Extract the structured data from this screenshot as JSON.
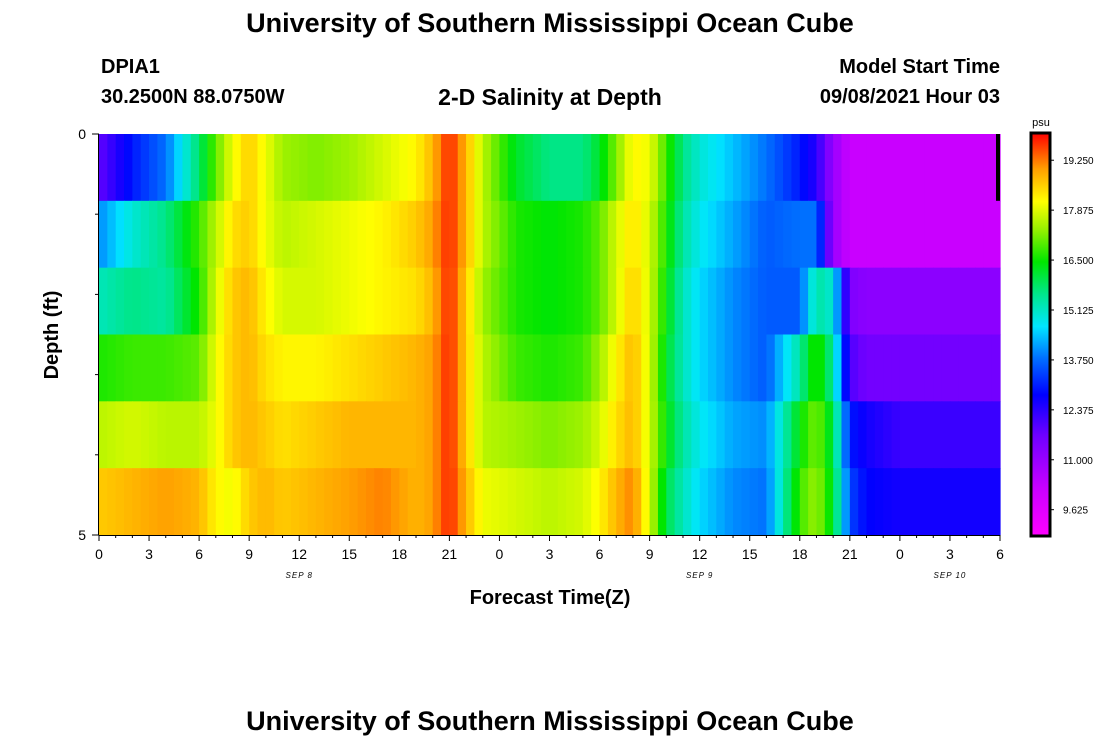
{
  "header": {
    "title_top": "University of Southern Mississippi Ocean Cube",
    "title_bottom": "University of Southern Mississippi Ocean Cube",
    "station_id": "DPIA1",
    "coordinates": "30.2500N  88.0750W",
    "chart_title": "2-D Salinity at Depth",
    "model_start_label": "Model Start Time",
    "model_start_value": "09/08/2021 Hour 03"
  },
  "chart_data": {
    "type": "heatmap",
    "title": "2-D Salinity at Depth",
    "xlabel": "Forecast Time(Z)",
    "ylabel": "Depth (ft)",
    "colorbar_label": "psu",
    "colorbar_ticks": [
      19.25,
      17.875,
      16.5,
      15.125,
      13.75,
      12.375,
      11.0,
      9.625
    ],
    "colorbar_tick_labels": [
      "19.250",
      "17.875",
      "16.500",
      "15.125",
      "13.750",
      "12.375",
      "11.000",
      "9.625"
    ],
    "colorbar_range": [
      8.9,
      20.0
    ],
    "x_hours": [
      0,
      54
    ],
    "x_ticks": [
      0,
      3,
      6,
      9,
      12,
      15,
      18,
      21,
      24,
      27,
      30,
      33,
      36,
      39,
      42,
      45,
      48,
      51,
      54
    ],
    "x_tick_labels": [
      "0",
      "3",
      "6",
      "9",
      "12",
      "15",
      "18",
      "21",
      "0",
      "3",
      "6",
      "9",
      "12",
      "15",
      "18",
      "21",
      "0",
      "3",
      "6"
    ],
    "date_labels": [
      {
        "hour": 12,
        "label": "SEP 8"
      },
      {
        "hour": 36,
        "label": "SEP 9"
      },
      {
        "hour": 51,
        "label": "SEP 10"
      }
    ],
    "ylim": [
      0,
      5
    ],
    "y_tick_labels": [
      "0",
      "5"
    ],
    "y_minor_ticks": [
      1,
      2,
      3,
      4
    ],
    "depth_layers": [
      0,
      1,
      2,
      3,
      4
    ],
    "keyframes_hours": [
      0,
      2,
      4,
      6,
      7,
      8,
      9,
      10,
      11,
      13,
      15,
      17,
      19,
      20,
      21,
      22,
      23,
      25,
      27,
      29,
      30,
      31,
      32,
      33,
      34,
      35,
      36,
      38,
      40,
      42,
      43,
      44,
      45,
      46,
      48,
      50,
      52,
      54
    ],
    "salinity": [
      [
        11.8,
        13.0,
        13.8,
        15.8,
        17.0,
        18.0,
        18.6,
        18.0,
        17.4,
        17.2,
        17.4,
        17.8,
        18.2,
        18.8,
        19.8,
        18.8,
        17.6,
        16.2,
        15.6,
        15.6,
        16.2,
        17.2,
        18.2,
        18.0,
        16.8,
        15.6,
        15.0,
        14.4,
        13.8,
        13.0,
        12.4,
        11.0,
        10.2,
        10.2,
        10.2,
        10.2,
        10.2,
        10.2
      ],
      [
        14.0,
        15.0,
        15.6,
        16.8,
        17.6,
        18.4,
        18.6,
        18.0,
        17.6,
        17.8,
        18.0,
        18.2,
        18.6,
        19.0,
        19.8,
        18.8,
        17.6,
        16.6,
        16.4,
        16.6,
        17.0,
        17.8,
        18.4,
        17.8,
        16.6,
        15.4,
        14.8,
        14.2,
        13.6,
        13.8,
        13.8,
        11.0,
        10.2,
        10.2,
        10.2,
        10.2,
        10.2,
        10.2
      ],
      [
        15.2,
        15.6,
        15.4,
        16.6,
        17.8,
        18.6,
        18.8,
        18.2,
        17.8,
        17.8,
        18.0,
        18.2,
        18.4,
        18.8,
        19.8,
        18.6,
        17.4,
        16.6,
        16.4,
        16.6,
        17.0,
        17.8,
        18.6,
        17.8,
        16.4,
        15.2,
        14.6,
        14.0,
        13.6,
        13.6,
        15.4,
        15.0,
        11.4,
        11.2,
        11.2,
        11.2,
        11.2,
        11.2
      ],
      [
        16.6,
        16.8,
        16.8,
        17.0,
        18.0,
        18.6,
        18.8,
        18.4,
        18.2,
        18.2,
        18.4,
        18.6,
        18.8,
        19.0,
        19.8,
        18.6,
        17.6,
        16.8,
        16.6,
        16.8,
        17.4,
        18.2,
        18.8,
        17.8,
        16.2,
        15.2,
        14.6,
        14.0,
        13.6,
        15.4,
        16.8,
        15.4,
        12.0,
        11.6,
        11.6,
        11.6,
        11.6,
        11.6
      ],
      [
        17.6,
        17.8,
        17.6,
        17.6,
        18.0,
        18.6,
        18.8,
        18.6,
        18.4,
        18.6,
        18.8,
        18.8,
        18.8,
        19.0,
        19.8,
        18.6,
        17.6,
        17.4,
        17.2,
        17.4,
        17.8,
        18.4,
        18.8,
        17.8,
        16.4,
        15.4,
        14.8,
        14.2,
        14.0,
        16.4,
        17.2,
        16.0,
        13.0,
        12.6,
        12.2,
        12.2,
        12.2,
        12.2
      ]
    ],
    "bottom_band_salinity": [
      [
        18.6,
        18.8,
        19.0,
        18.8,
        18.2,
        18.0,
        18.6,
        18.8,
        18.6,
        18.8,
        19.0,
        19.2,
        18.8,
        19.0,
        19.8,
        18.8,
        18.0,
        17.8,
        17.6,
        17.8,
        18.2,
        18.8,
        19.2,
        17.8,
        16.0,
        15.2,
        14.6,
        14.0,
        13.8,
        16.8,
        17.4,
        16.2,
        13.4,
        12.8,
        12.6,
        12.6,
        12.6,
        12.6
      ]
    ]
  }
}
